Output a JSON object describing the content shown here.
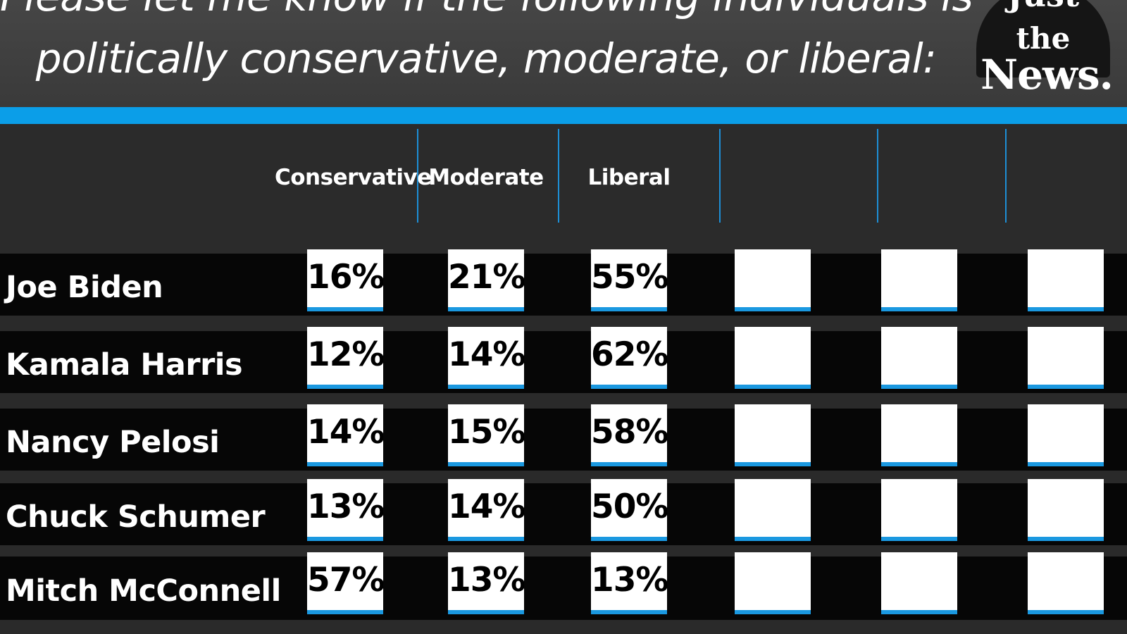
{
  "header": {
    "title_line1": "Please let me know if the following individuals is",
    "title_line2": "politically conservative, moderate, or liberal:"
  },
  "logo": {
    "word1": "Just",
    "word2": "the",
    "word3": "News."
  },
  "colors": {
    "accent_blue": "#0b9ee8",
    "header_bg": "#3f3f3f",
    "row_bg": "#060606",
    "cell_bg": "#ffffff"
  },
  "chart_data": {
    "type": "table",
    "columns": [
      "Conservative",
      "Moderate",
      "Liberal",
      "",
      "",
      ""
    ],
    "rows": [
      {
        "name": "Joe Biden",
        "values": [
          "16%",
          "21%",
          "55%",
          "",
          "",
          ""
        ]
      },
      {
        "name": "Kamala Harris",
        "values": [
          "12%",
          "14%",
          "62%",
          "",
          "",
          ""
        ]
      },
      {
        "name": "Nancy Pelosi",
        "values": [
          "14%",
          "15%",
          "58%",
          "",
          "",
          ""
        ]
      },
      {
        "name": "Chuck Schumer",
        "values": [
          "13%",
          "14%",
          "50%",
          "",
          "",
          ""
        ]
      },
      {
        "name": "Mitch McConnell",
        "values": [
          "57%",
          "13%",
          "13%",
          "",
          "",
          ""
        ]
      }
    ]
  }
}
